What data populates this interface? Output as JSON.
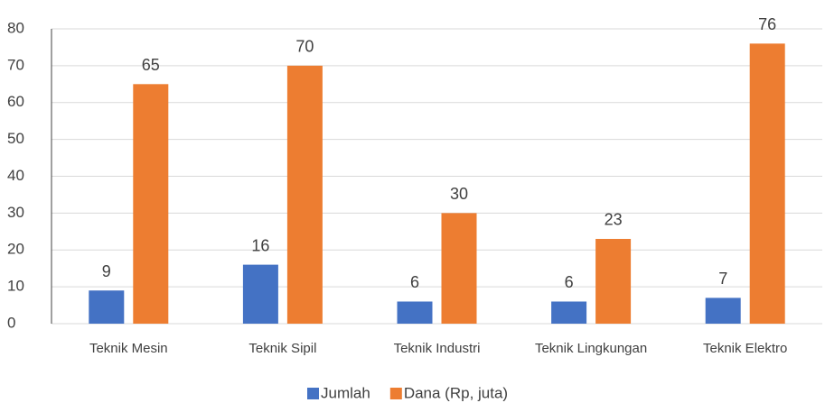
{
  "chart_data": {
    "type": "bar",
    "categories": [
      "Teknik Mesin",
      "Teknik Sipil",
      "Teknik Industri",
      "Teknik Lingkungan",
      "Teknik Elektro"
    ],
    "series": [
      {
        "name": "Jumlah",
        "color": "#4472c4",
        "values": [
          9,
          16,
          6,
          6,
          7
        ]
      },
      {
        "name": "Dana (Rp, juta)",
        "color": "#ed7d31",
        "values": [
          65,
          70,
          30,
          23,
          76
        ]
      }
    ],
    "ylim": [
      0,
      80
    ],
    "yticks": [
      0,
      10,
      20,
      30,
      40,
      50,
      60,
      70,
      80
    ],
    "grid": true,
    "legend": "bottom"
  }
}
